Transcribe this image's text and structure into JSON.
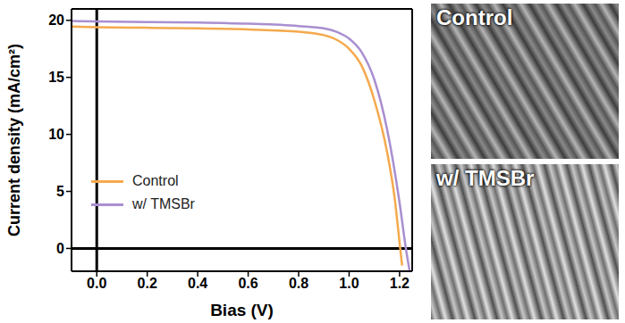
{
  "chart_data": {
    "type": "line",
    "xlabel": "Bias (V)",
    "ylabel": "Current density (mA/cm²)",
    "xlim": [
      -0.1,
      1.25
    ],
    "ylim": [
      -2,
      21
    ],
    "xticks": [
      {
        "value": 0,
        "label": "0.0"
      },
      0.2,
      0.4,
      0.6,
      0.8,
      {
        "value": 1,
        "label": "1.0"
      },
      1.2
    ],
    "yticks": [
      0,
      5,
      10,
      15,
      20
    ],
    "legend": "lower left",
    "grid": false,
    "series": [
      {
        "name": "Control",
        "color": "#f5a94d",
        "x": [
          -0.1,
          0,
          0.2,
          0.4,
          0.6,
          0.8,
          0.9,
          0.95,
          1.0,
          1.05,
          1.1,
          1.15,
          1.18,
          1.2,
          1.21
        ],
        "values": [
          19.45,
          19.4,
          19.35,
          19.3,
          19.2,
          19.0,
          18.7,
          18.3,
          17.5,
          16.0,
          13.0,
          8.5,
          4.5,
          0.5,
          -1.5
        ]
      },
      {
        "name": "w/ TMSBr",
        "color": "#a98fd0",
        "x": [
          -0.1,
          0,
          0.2,
          0.4,
          0.6,
          0.8,
          0.9,
          0.95,
          1.0,
          1.05,
          1.1,
          1.15,
          1.2,
          1.225,
          1.24
        ],
        "values": [
          19.95,
          19.9,
          19.85,
          19.8,
          19.7,
          19.5,
          19.3,
          19.0,
          18.4,
          17.2,
          14.8,
          10.5,
          4.0,
          0.0,
          -2.0
        ]
      }
    ]
  },
  "images": [
    {
      "label": "Control"
    },
    {
      "label": "w/ TMSBr"
    }
  ]
}
